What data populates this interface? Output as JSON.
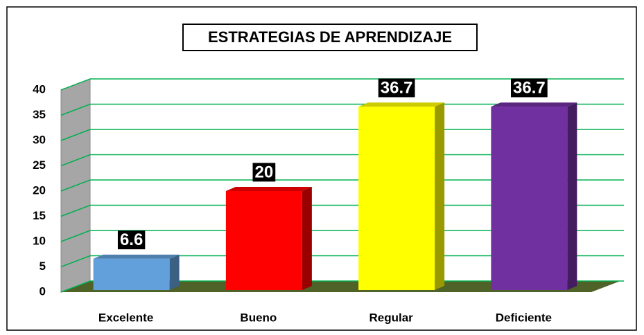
{
  "chart_data": {
    "type": "bar3d",
    "title": "ESTRATEGIAS DE APRENDIZAJE",
    "categories": [
      "Excelente",
      "Bueno",
      "Regular",
      "Deficiente"
    ],
    "values": [
      6.6,
      20,
      36.7,
      36.7
    ],
    "colors": [
      "#62a0db",
      "#ff0000",
      "#ffff00",
      "#7030a0"
    ],
    "ylim": [
      0,
      40
    ],
    "yticks": [
      0,
      5,
      10,
      15,
      20,
      25,
      30,
      35,
      40
    ],
    "grid": true
  }
}
